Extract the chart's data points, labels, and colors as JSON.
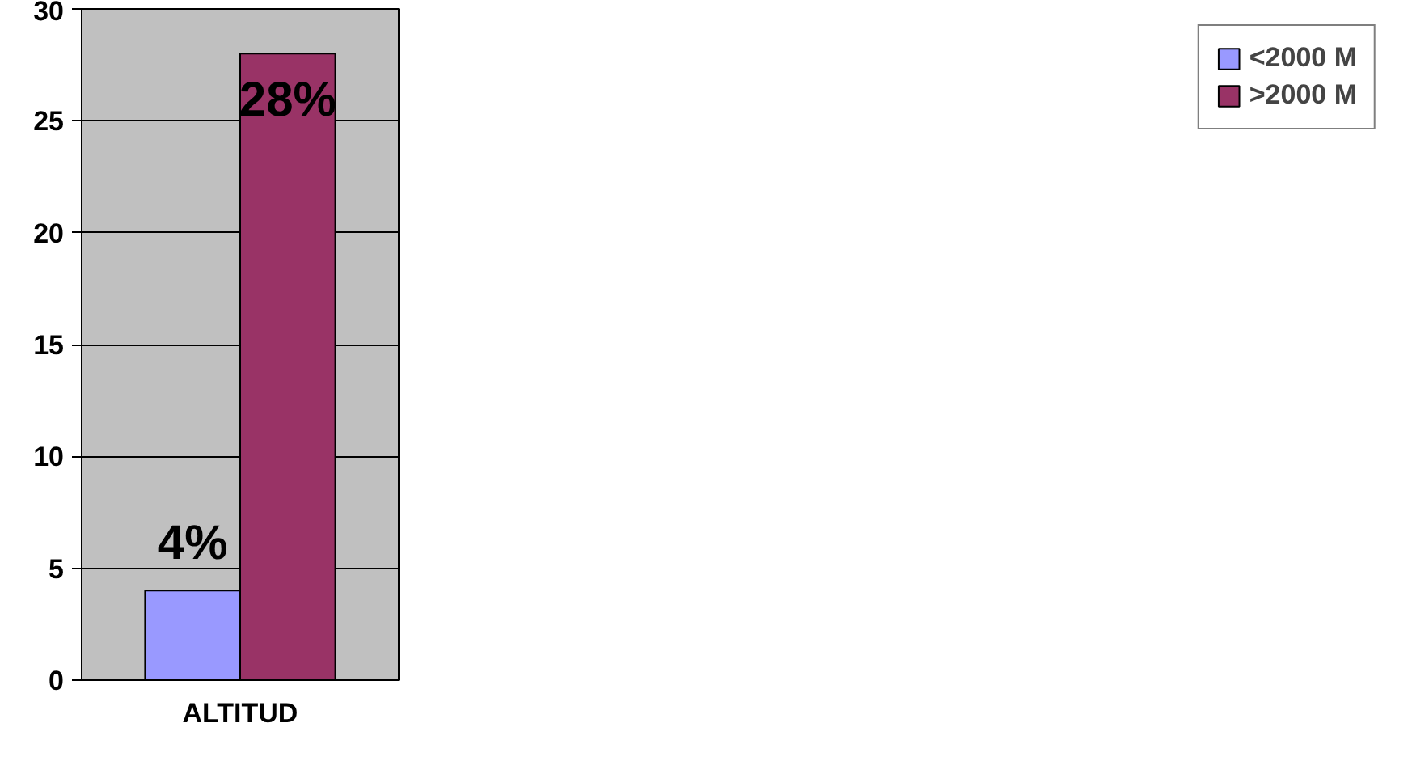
{
  "chart_data": {
    "type": "bar",
    "categories": [
      "ALTITUD"
    ],
    "series": [
      {
        "name": "<2000 M",
        "color": "#9999ff",
        "values": [
          4
        ],
        "value_labels": [
          "4%"
        ]
      },
      {
        "name": ">2000 M",
        "color": "#993366",
        "values": [
          28
        ],
        "value_labels": [
          "28%"
        ]
      }
    ],
    "ylim": [
      0,
      30
    ],
    "yticks": [
      0,
      5,
      10,
      15,
      20,
      25,
      30
    ],
    "grid": "y",
    "legend": "right"
  }
}
